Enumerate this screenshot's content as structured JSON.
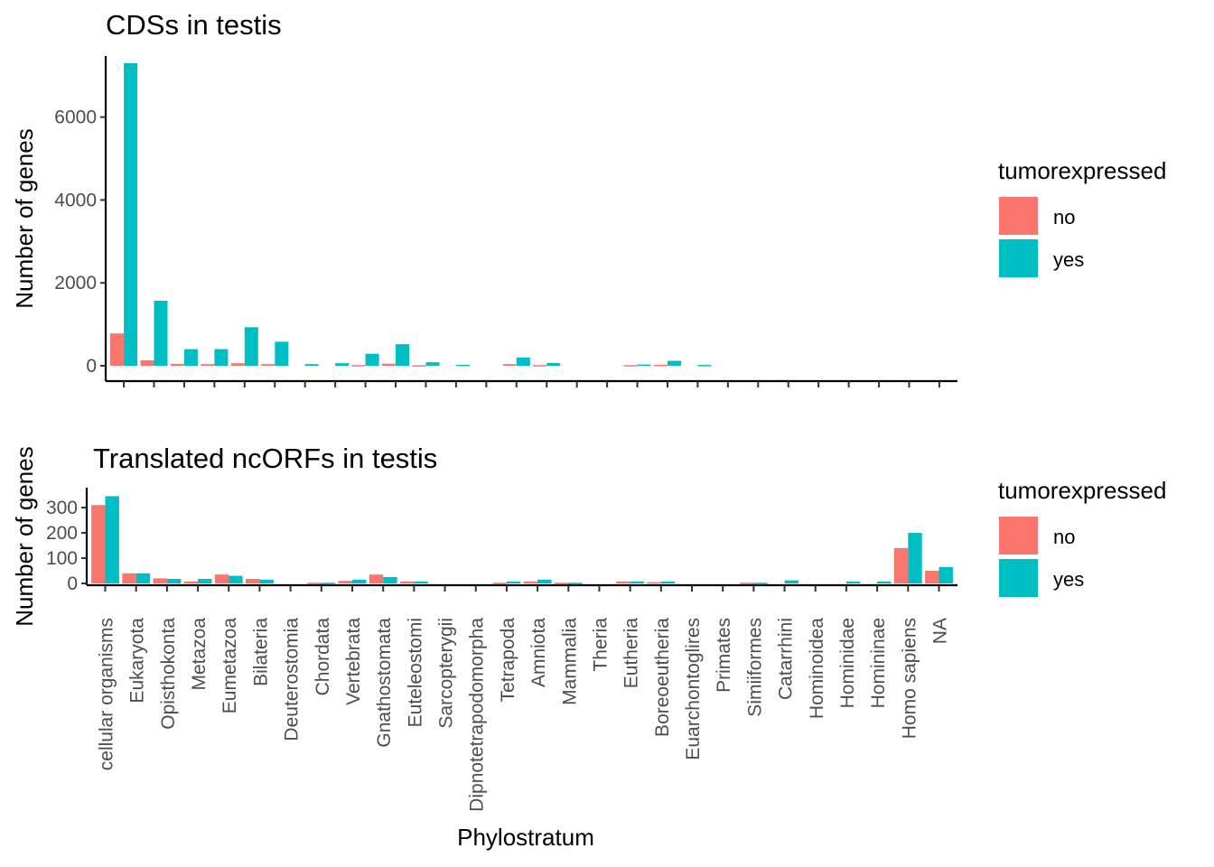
{
  "chart_data": [
    {
      "type": "bar",
      "title": "CDSs in testis",
      "xlabel": "",
      "ylabel": "Number of genes",
      "ylim": [
        0,
        7300
      ],
      "yticks": [
        0,
        2000,
        4000,
        6000
      ],
      "categories": [
        "cellular organisms",
        "Eukaryota",
        "Opisthokonta",
        "Metazoa",
        "Eumetazoa",
        "Bilateria",
        "Deuterostomia",
        "Chordata",
        "Vertebrata",
        "Gnathostomata",
        "Euteleostomi",
        "Sarcopterygii",
        "Dipnotetrapodomorpha",
        "Tetrapoda",
        "Amniota",
        "Mammalia",
        "Theria",
        "Eutheria",
        "Boreoeutheria",
        "Euarchontoglires",
        "Primates",
        "Simiiformes",
        "Catarrhini",
        "Hominoidea",
        "Hominidae",
        "Homininae",
        "Homo sapiens",
        "NA"
      ],
      "series": [
        {
          "name": "no",
          "color": "#F8766D",
          "values": [
            780,
            130,
            45,
            40,
            60,
            40,
            0,
            0,
            15,
            50,
            10,
            0,
            0,
            40,
            15,
            0,
            0,
            15,
            25,
            0,
            0,
            0,
            0,
            0,
            0,
            0,
            0,
            0
          ]
        },
        {
          "name": "yes",
          "color": "#00BFC4",
          "values": [
            7300,
            1570,
            400,
            400,
            930,
            580,
            40,
            60,
            290,
            520,
            85,
            25,
            0,
            200,
            65,
            0,
            0,
            30,
            120,
            20,
            0,
            0,
            0,
            0,
            0,
            0,
            0,
            0
          ]
        }
      ],
      "legend": {
        "title": "tumorexpressed",
        "position": "right"
      }
    },
    {
      "type": "bar",
      "title": "Translated ncORFs in testis",
      "xlabel": "Phylostratum",
      "ylabel": "Number of genes",
      "ylim": [
        0,
        350
      ],
      "yticks": [
        0,
        100,
        200,
        300
      ],
      "categories": [
        "cellular organisms",
        "Eukaryota",
        "Opisthokonta",
        "Metazoa",
        "Eumetazoa",
        "Bilateria",
        "Deuterostomia",
        "Chordata",
        "Vertebrata",
        "Gnathostomata",
        "Euteleostomi",
        "Sarcopterygii",
        "Dipnotetrapodomorpha",
        "Tetrapoda",
        "Amniota",
        "Mammalia",
        "Theria",
        "Eutheria",
        "Boreoeutheria",
        "Euarchontoglires",
        "Primates",
        "Simiiformes",
        "Catarrhini",
        "Hominoidea",
        "Hominidae",
        "Homininae",
        "Homo sapiens",
        "NA"
      ],
      "series": [
        {
          "name": "no",
          "color": "#F8766D",
          "values": [
            310,
            40,
            20,
            8,
            35,
            18,
            0,
            3,
            10,
            35,
            8,
            0,
            0,
            3,
            8,
            3,
            0,
            8,
            5,
            0,
            0,
            3,
            0,
            0,
            0,
            0,
            140,
            50
          ]
        },
        {
          "name": "yes",
          "color": "#00BFC4",
          "values": [
            345,
            40,
            18,
            18,
            30,
            15,
            0,
            3,
            15,
            25,
            8,
            0,
            0,
            8,
            15,
            3,
            0,
            8,
            8,
            0,
            0,
            3,
            12,
            0,
            8,
            8,
            200,
            65
          ]
        }
      ],
      "legend": {
        "title": "tumorexpressed",
        "position": "right"
      }
    }
  ]
}
